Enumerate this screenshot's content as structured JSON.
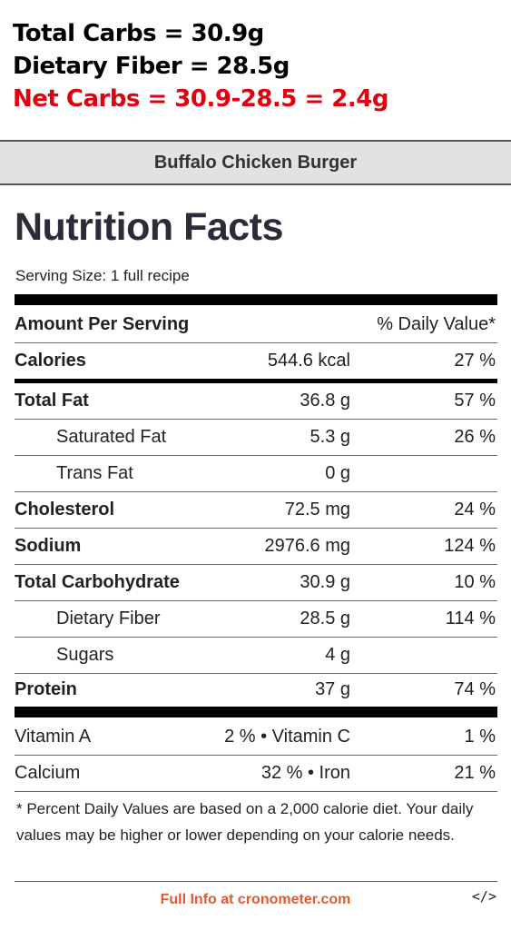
{
  "headlines": {
    "total_carbs": "Total Carbs = 30.9g",
    "dietary_fiber": "Dietary Fiber = 28.5g",
    "net_carbs": "Net Carbs = 30.9-28.5 = 2.4g"
  },
  "card": {
    "recipe_name": "Buffalo Chicken Burger",
    "title": "Nutrition Facts",
    "serving_size": "Serving Size: 1 full recipe",
    "amount_header": "Amount Per Serving",
    "dv_header": "% Daily Value*",
    "rows": [
      {
        "name": "Calories",
        "amount": "544.6 kcal",
        "dv": "27 %"
      },
      {
        "name": "Total Fat",
        "amount": "36.8 g",
        "dv": "57 %"
      },
      {
        "name": "Saturated Fat",
        "amount": "5.3 g",
        "dv": "26 %"
      },
      {
        "name": "Trans Fat",
        "amount": "0 g",
        "dv": ""
      },
      {
        "name": "Cholesterol",
        "amount": "72.5 mg",
        "dv": "24 %"
      },
      {
        "name": "Sodium",
        "amount": "2976.6 mg",
        "dv": "124 %"
      },
      {
        "name": "Total Carbohydrate",
        "amount": "30.9 g",
        "dv": "10 %"
      },
      {
        "name": "Dietary Fiber",
        "amount": "28.5 g",
        "dv": "114 %"
      },
      {
        "name": "Sugars",
        "amount": "4 g",
        "dv": ""
      },
      {
        "name": "Protein",
        "amount": "37 g",
        "dv": "74 %"
      }
    ],
    "vitamins": [
      {
        "left": "Vitamin A",
        "mid": "2 % • Vitamin C",
        "right": "1 %"
      },
      {
        "left": "Calcium",
        "mid": "32 % • Iron",
        "right": "21 %"
      }
    ],
    "footnote": "* Percent Daily Values are based on a 2,000 calorie diet. Your daily values may be higher or lower depending on your calorie needs.",
    "full_info_link": "Full Info at cronometer.com",
    "embed_icon": "</>"
  },
  "colors": {
    "net_carbs": "#e0000f",
    "link": "#e05a2e",
    "header_bg": "#e2e2e2"
  }
}
